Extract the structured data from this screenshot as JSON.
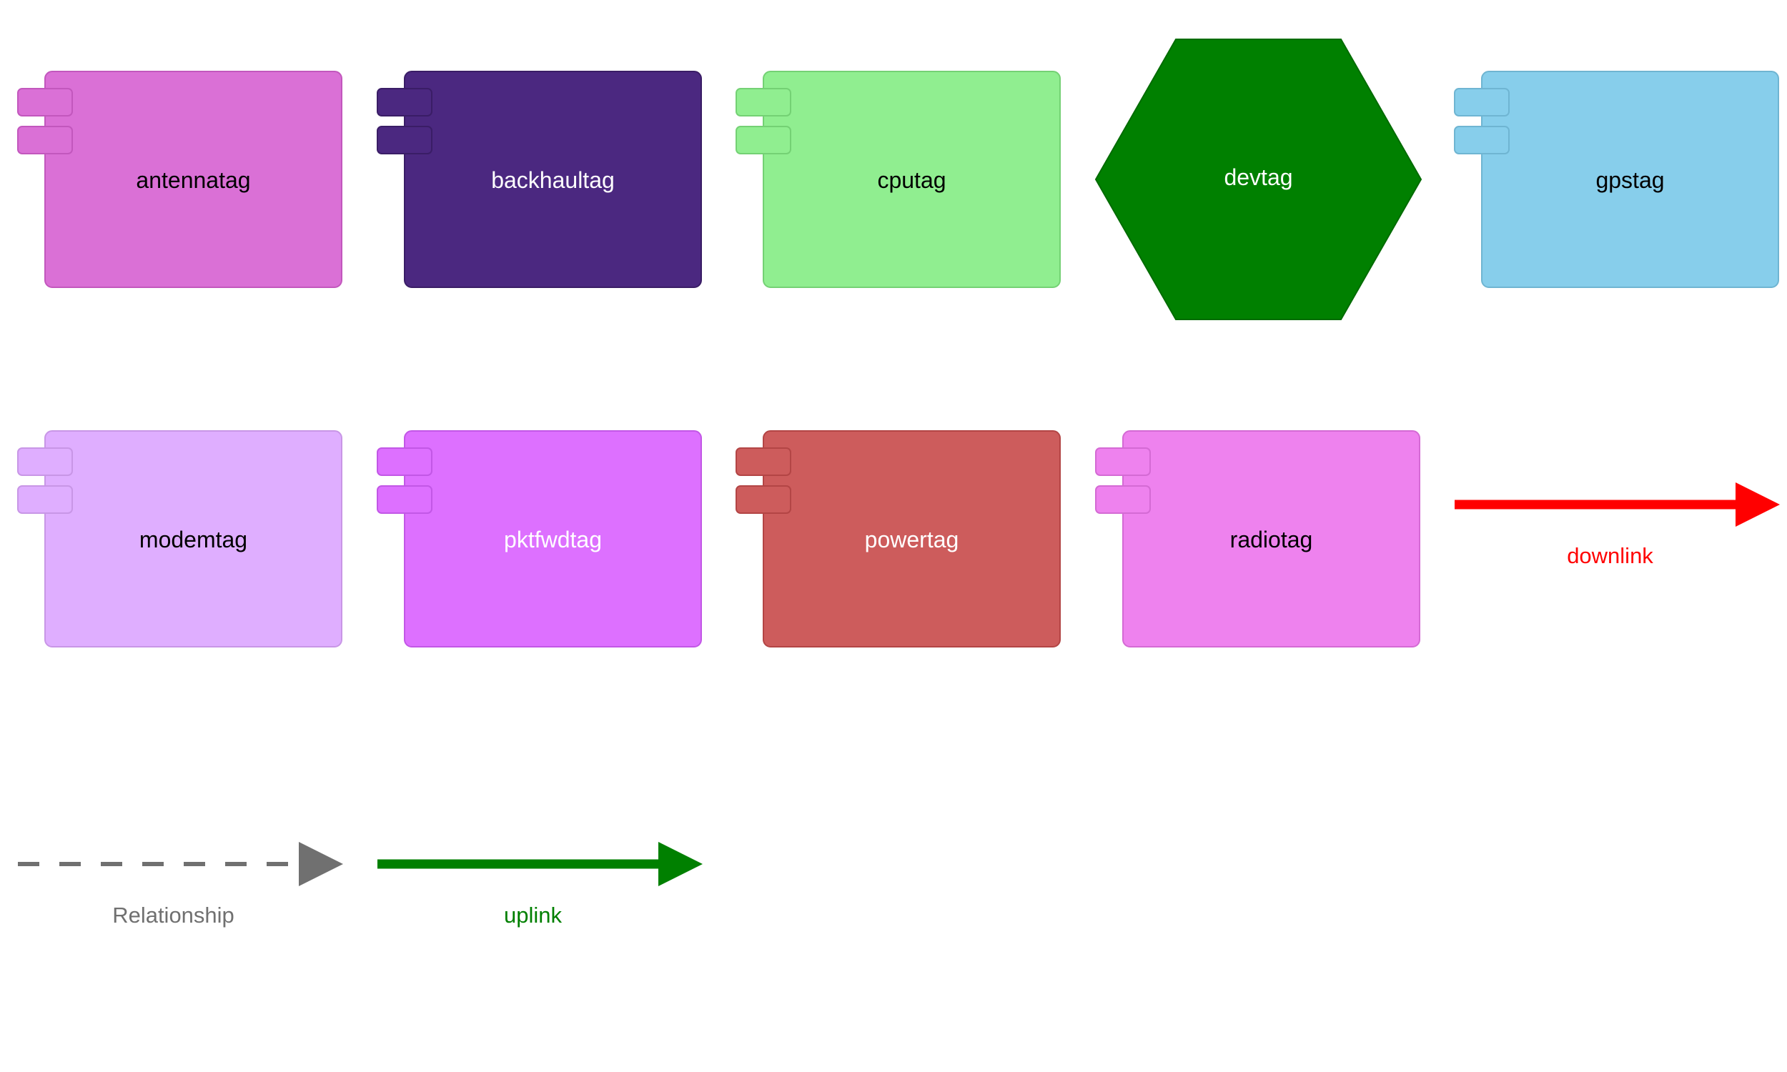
{
  "legend": {
    "elements": [
      {
        "id": "antennatag",
        "label": "antennatag",
        "shape": "component",
        "fill": "#da70d6",
        "stroke": "#c257bd",
        "text_color": "#000000"
      },
      {
        "id": "backhaultag",
        "label": "backhaultag",
        "shape": "component",
        "fill": "#4b2880",
        "stroke": "#3a1d66",
        "text_color": "#ffffff"
      },
      {
        "id": "cputag",
        "label": "cputag",
        "shape": "component",
        "fill": "#90ee90",
        "stroke": "#74d174",
        "text_color": "#000000"
      },
      {
        "id": "devtag",
        "label": "devtag",
        "shape": "hexagon",
        "fill": "#008000",
        "stroke": "#006b00",
        "text_color": "#ffffff"
      },
      {
        "id": "gpstag",
        "label": "gpstag",
        "shape": "component",
        "fill": "#87ceeb",
        "stroke": "#6fb5d2",
        "text_color": "#000000"
      },
      {
        "id": "modemtag",
        "label": "modemtag",
        "shape": "component",
        "fill": "#dfaeff",
        "stroke": "#c896e6",
        "text_color": "#000000"
      },
      {
        "id": "pktfwdtag",
        "label": "pktfwdtag",
        "shape": "component",
        "fill": "#dd70ff",
        "stroke": "#c257e6",
        "text_color": "#ffffff"
      },
      {
        "id": "powertag",
        "label": "powertag",
        "shape": "component",
        "fill": "#cd5c5c",
        "stroke": "#b34545",
        "text_color": "#ffffff"
      },
      {
        "id": "radiotag",
        "label": "radiotag",
        "shape": "component",
        "fill": "#ee82ee",
        "stroke": "#d46ad4",
        "text_color": "#000000"
      }
    ],
    "relationships": [
      {
        "id": "downlink",
        "label": "downlink",
        "color": "#ff0000",
        "dashed": false,
        "thick": true
      },
      {
        "id": "relationship",
        "label": "Relationship",
        "color": "#707070",
        "dashed": true,
        "thick": false
      },
      {
        "id": "uplink",
        "label": "uplink",
        "color": "#008000",
        "dashed": false,
        "thick": true
      }
    ]
  }
}
